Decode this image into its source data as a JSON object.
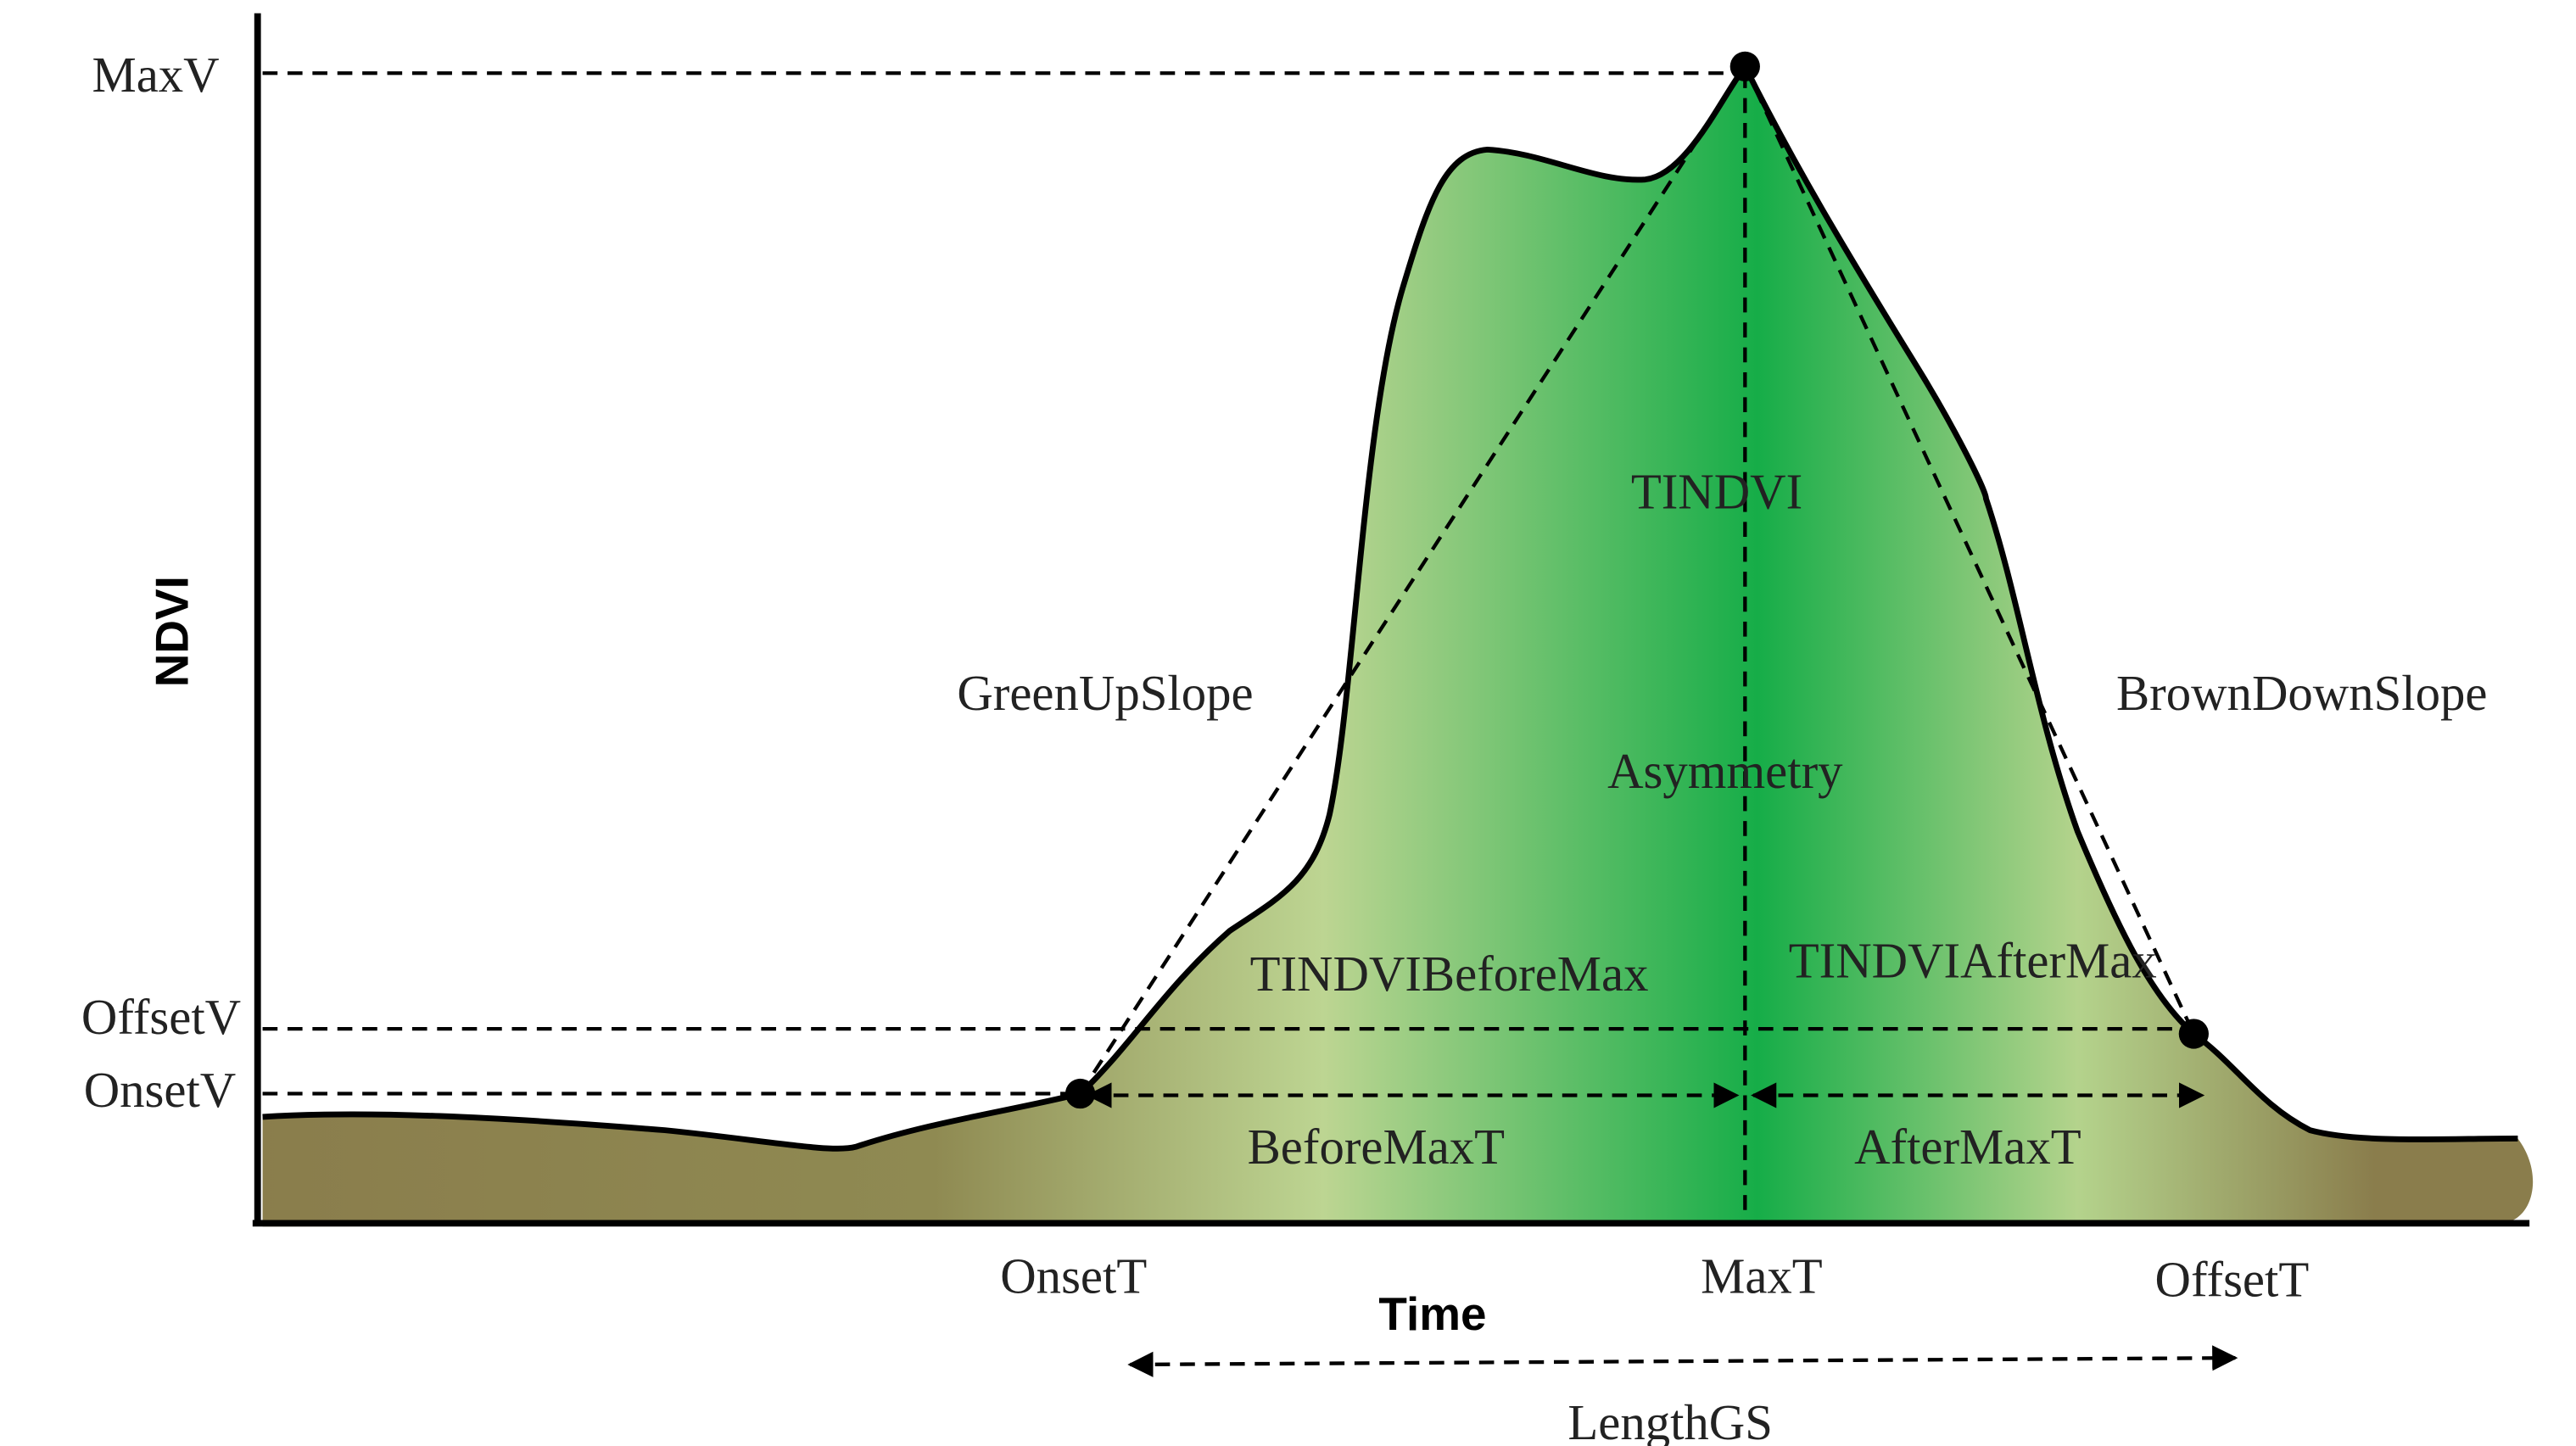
{
  "axes": {
    "y_label": "NDVI",
    "x_label": "Time"
  },
  "y_markers": [
    "MaxV",
    "OffsetV",
    "OnsetV"
  ],
  "x_markers": [
    "OnsetT",
    "MaxT",
    "OffsetT"
  ],
  "duration_labels": [
    "BeforeMaxT",
    "AfterMaxT",
    "LengthGS"
  ],
  "annotations": [
    "TINDVI",
    "GreenUpSlope",
    "BrownDownSlope",
    "Asymmetry",
    "TINDVIBeforeMax",
    "TINDVIAfterMax"
  ]
}
